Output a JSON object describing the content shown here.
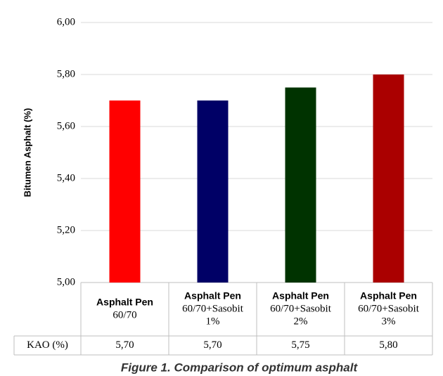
{
  "chart_data": {
    "type": "bar",
    "y_label": "Bitumen Asphalt   (%)",
    "categories": [
      [
        "Asphalt Pen",
        "60/70"
      ],
      [
        "Asphalt Pen",
        "60/70+Sasobit",
        "1%"
      ],
      [
        "Asphalt Pen",
        "60/70+Sasobit",
        "2%"
      ],
      [
        "Asphalt Pen",
        "60/70+Sasobit",
        "3%"
      ]
    ],
    "values": [
      5.7,
      5.7,
      5.75,
      5.8
    ],
    "value_labels": [
      "5,70",
      "5,70",
      "5,75",
      "5,80"
    ],
    "colors": [
      "#ff0000",
      "#000066",
      "#003300",
      "#aa0000"
    ],
    "table_row_label": "KAO (%)",
    "ylim": [
      5,
      6
    ],
    "yticks": [
      {
        "value": 5,
        "label": "5,00"
      },
      {
        "value": 5.2,
        "label": "5,20"
      },
      {
        "value": 5.4,
        "label": "5,40"
      },
      {
        "value": 5.6,
        "label": "5,60"
      },
      {
        "value": 5.8,
        "label": "5,80"
      },
      {
        "value": 6,
        "label": "6,00"
      }
    ],
    "grid": true,
    "caption": "Figure 1. Comparison of optimum asphalt"
  }
}
